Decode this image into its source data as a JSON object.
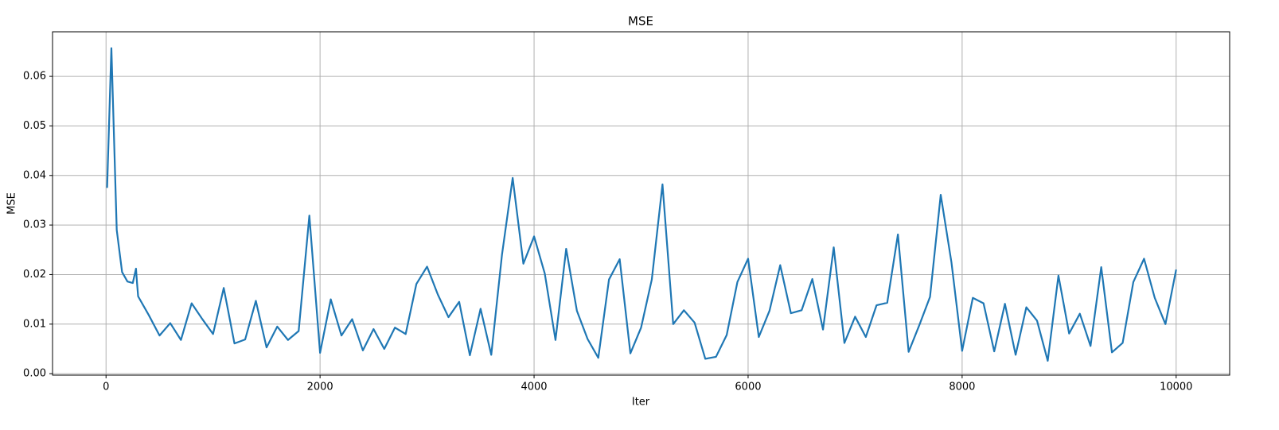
{
  "chart_data": {
    "type": "line",
    "title": "MSE",
    "x_label": "Iter",
    "y_label": "MSE",
    "color": "#1f77b4",
    "grid": true,
    "xlim": [
      -500,
      10500
    ],
    "ylim": [
      -0.0003,
      0.069
    ],
    "xticks": [
      0,
      2000,
      4000,
      6000,
      8000,
      10000
    ],
    "yticks": [
      {
        "value": 0,
        "label": "0.00"
      },
      0.01,
      0.02,
      0.03,
      0.04,
      0.05,
      0.06
    ],
    "x": [
      10,
      50,
      100,
      150,
      200,
      250,
      280,
      290,
      300,
      400,
      500,
      600,
      700,
      800,
      900,
      1000,
      1100,
      1200,
      1300,
      1400,
      1500,
      1600,
      1700,
      1800,
      1900,
      2000,
      2100,
      2200,
      2300,
      2400,
      2500,
      2600,
      2700,
      2800,
      2900,
      3000,
      3100,
      3200,
      3300,
      3400,
      3500,
      3600,
      3700,
      3800,
      3900,
      4000,
      4100,
      4200,
      4300,
      4400,
      4500,
      4600,
      4700,
      4800,
      4900,
      5000,
      5100,
      5200,
      5300,
      5400,
      5500,
      5600,
      5700,
      5800,
      5900,
      6000,
      6100,
      6200,
      6300,
      6400,
      6500,
      6600,
      6700,
      6800,
      6900,
      7000,
      7100,
      7200,
      7300,
      7400,
      7500,
      7600,
      7700,
      7800,
      7900,
      8000,
      8100,
      8200,
      8300,
      8400,
      8500,
      8600,
      8700,
      8800,
      8900,
      9000,
      9100,
      9200,
      9300,
      9400,
      9500,
      9600,
      9700,
      9800,
      9900,
      10000
    ],
    "values": [
      0.0375,
      0.0657,
      0.029,
      0.0205,
      0.0186,
      0.0183,
      0.0212,
      0.0182,
      0.0156,
      0.0118,
      0.0077,
      0.0102,
      0.0068,
      0.0142,
      0.011,
      0.008,
      0.0173,
      0.0061,
      0.0069,
      0.0147,
      0.0053,
      0.0095,
      0.0068,
      0.0086,
      0.0319,
      0.0042,
      0.015,
      0.0077,
      0.011,
      0.0047,
      0.009,
      0.005,
      0.0093,
      0.008,
      0.0181,
      0.0216,
      0.016,
      0.0114,
      0.0145,
      0.0037,
      0.0131,
      0.0038,
      0.024,
      0.0395,
      0.0222,
      0.0277,
      0.0202,
      0.0068,
      0.0252,
      0.0127,
      0.007,
      0.0032,
      0.019,
      0.0231,
      0.0041,
      0.0093,
      0.019,
      0.0382,
      0.01,
      0.0128,
      0.0103,
      0.003,
      0.0034,
      0.0078,
      0.0185,
      0.0232,
      0.0074,
      0.0127,
      0.0219,
      0.0122,
      0.0128,
      0.0191,
      0.0089,
      0.0255,
      0.0062,
      0.0115,
      0.0074,
      0.0138,
      0.0143,
      0.0281,
      0.0044,
      0.0098,
      0.0155,
      0.0361,
      0.0225,
      0.0046,
      0.0153,
      0.0142,
      0.0045,
      0.0141,
      0.0038,
      0.0134,
      0.0107,
      0.0026,
      0.0198,
      0.0081,
      0.0121,
      0.0056,
      0.0215,
      0.0043,
      0.0062,
      0.0185,
      0.0232,
      0.0153,
      0.01,
      0.021
    ]
  }
}
